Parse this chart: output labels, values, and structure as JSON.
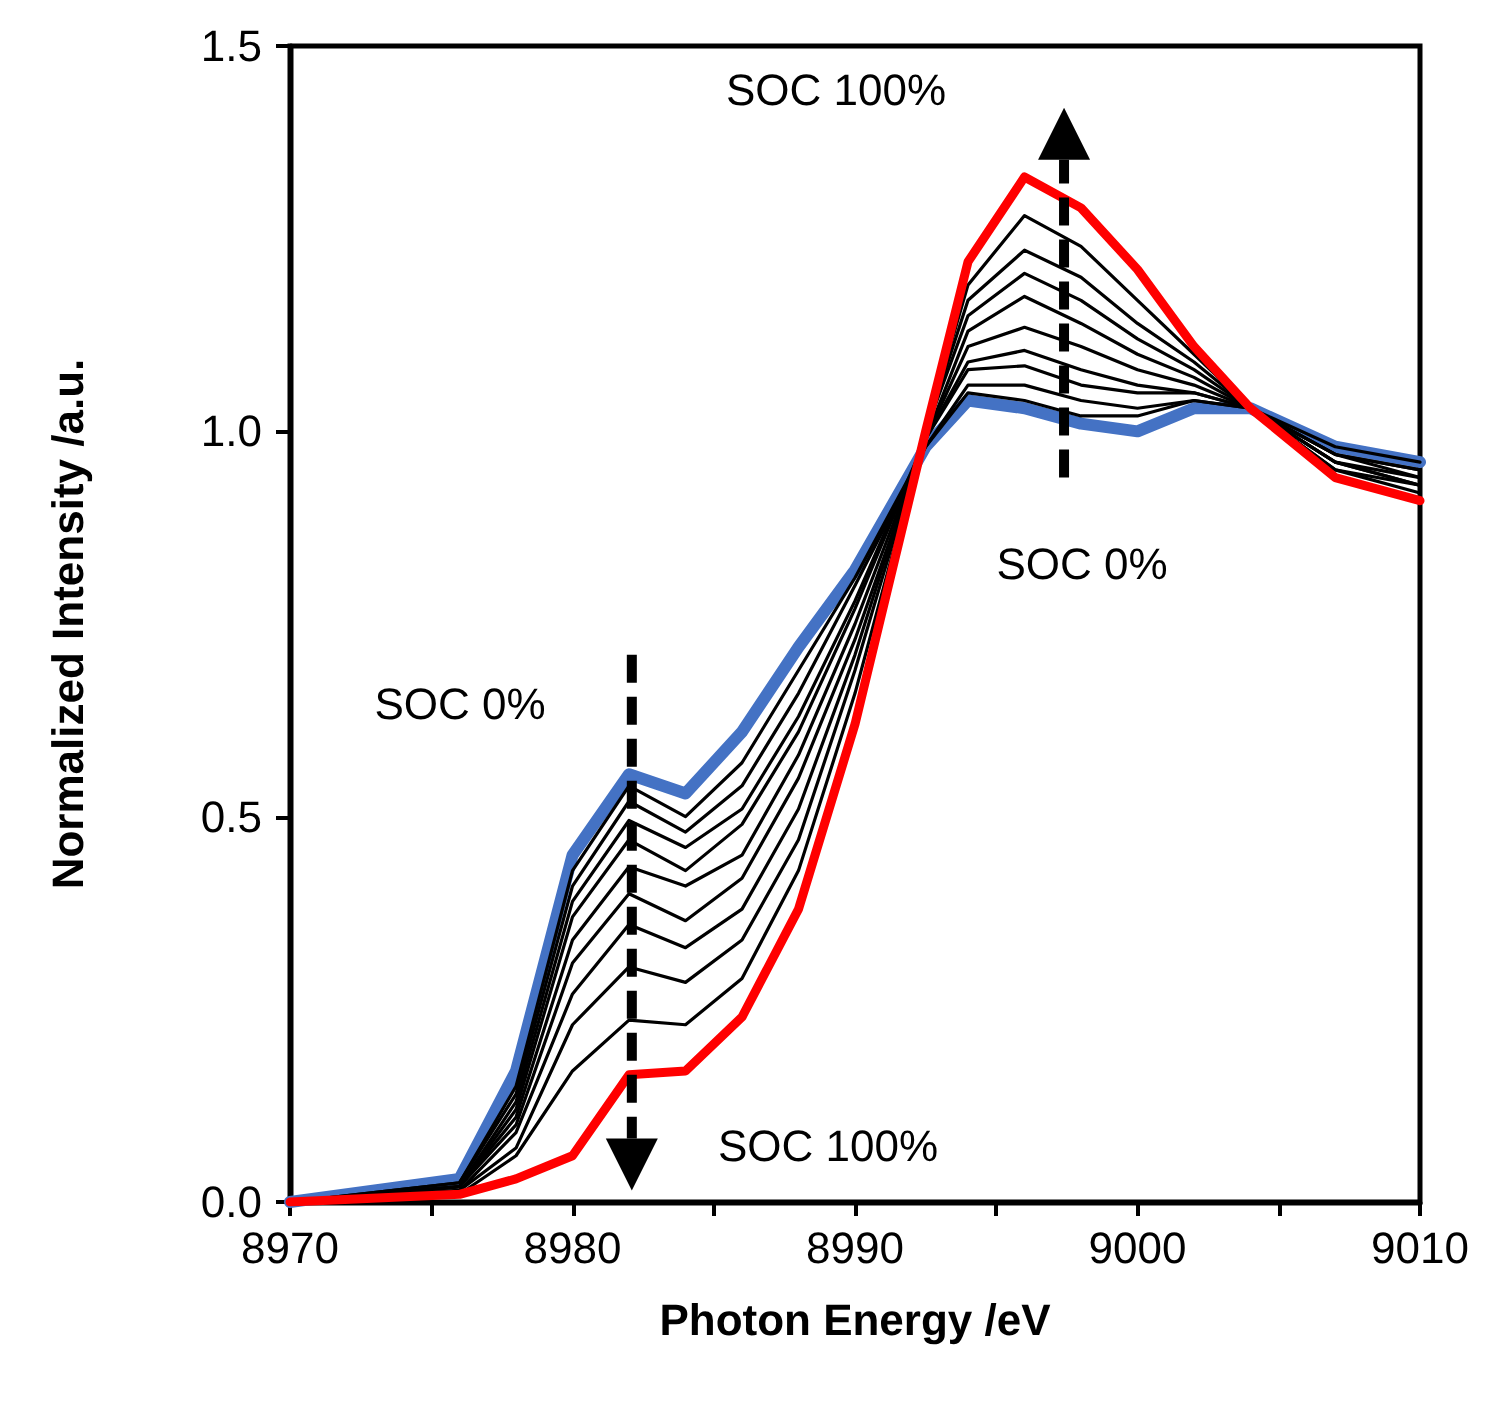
{
  "chart_data": {
    "type": "line",
    "xlabel": "Photon Energy /eV",
    "ylabel": "Normalized Intensity /a.u.",
    "x": [
      8970,
      8976,
      8978,
      8980,
      8982,
      8984,
      8986,
      8988,
      8990,
      8992.5,
      8994,
      8996,
      8998,
      9000,
      9002,
      9004,
      9007,
      9010
    ],
    "series": [
      {
        "color": "#4472c4",
        "values": [
          0,
          0.03,
          0.17,
          0.45,
          0.555,
          0.53,
          0.61,
          0.72,
          0.82,
          0.98,
          1.04,
          1.03,
          1.01,
          1.0,
          1.03,
          1.03,
          0.98,
          0.96
        ]
      },
      {
        "color": "#000000",
        "values": [
          0,
          0.025,
          0.15,
          0.43,
          0.54,
          0.5,
          0.57,
          0.69,
          0.81,
          0.98,
          1.05,
          1.04,
          1.02,
          1.02,
          1.04,
          1.03,
          0.98,
          0.96
        ]
      },
      {
        "color": "#000000",
        "values": [
          0,
          0.025,
          0.14,
          0.41,
          0.52,
          0.48,
          0.54,
          0.66,
          0.8,
          0.98,
          1.06,
          1.06,
          1.04,
          1.03,
          1.04,
          1.03,
          0.97,
          0.95
        ]
      },
      {
        "color": "#000000",
        "values": [
          0,
          0.02,
          0.13,
          0.39,
          0.495,
          0.46,
          0.51,
          0.63,
          0.78,
          0.99,
          1.08,
          1.085,
          1.06,
          1.05,
          1.05,
          1.03,
          0.97,
          0.95
        ]
      },
      {
        "color": "#000000",
        "values": [
          0,
          0.02,
          0.12,
          0.37,
          0.47,
          0.43,
          0.49,
          0.61,
          0.77,
          0.99,
          1.09,
          1.105,
          1.08,
          1.06,
          1.05,
          1.03,
          0.97,
          0.94
        ]
      },
      {
        "color": "#000000",
        "values": [
          0,
          0.02,
          0.11,
          0.34,
          0.435,
          0.41,
          0.45,
          0.58,
          0.75,
          0.99,
          1.11,
          1.135,
          1.11,
          1.08,
          1.06,
          1.03,
          0.96,
          0.94
        ]
      },
      {
        "color": "#000000",
        "values": [
          0,
          0.02,
          0.1,
          0.31,
          0.4,
          0.365,
          0.42,
          0.55,
          0.73,
          0.99,
          1.13,
          1.175,
          1.14,
          1.1,
          1.07,
          1.03,
          0.96,
          0.93
        ]
      },
      {
        "color": "#000000",
        "values": [
          0,
          0.015,
          0.09,
          0.27,
          0.36,
          0.33,
          0.38,
          0.51,
          0.71,
          1.0,
          1.15,
          1.205,
          1.17,
          1.12,
          1.08,
          1.03,
          0.96,
          0.93
        ]
      },
      {
        "color": "#000000",
        "values": [
          0,
          0.015,
          0.07,
          0.23,
          0.305,
          0.285,
          0.34,
          0.47,
          0.69,
          1.0,
          1.17,
          1.235,
          1.2,
          1.14,
          1.09,
          1.03,
          0.95,
          0.93
        ]
      },
      {
        "color": "#000000",
        "values": [
          0,
          0.01,
          0.06,
          0.17,
          0.236,
          0.23,
          0.29,
          0.43,
          0.66,
          1.0,
          1.19,
          1.28,
          1.24,
          1.17,
          1.1,
          1.03,
          0.95,
          0.92
        ]
      },
      {
        "color": "#ff0000",
        "values": [
          0,
          0.01,
          0.03,
          0.06,
          0.165,
          0.17,
          0.24,
          0.38,
          0.62,
          1.0,
          1.22,
          1.33,
          1.29,
          1.21,
          1.11,
          1.03,
          0.94,
          0.91
        ]
      }
    ],
    "xlim": [
      8970,
      9010
    ],
    "xticks": [
      8970,
      {
        "value": 8975,
        "label": null
      },
      8980,
      {
        "value": 8985,
        "label": null
      },
      8990,
      {
        "value": 8995,
        "label": null
      },
      9000,
      {
        "value": 9005,
        "label": null
      },
      9010
    ],
    "ylim": [
      0,
      1.5
    ],
    "yticks": [
      {
        "value": 0,
        "label": "0.0"
      },
      {
        "value": 0.5,
        "label": "0.5"
      },
      {
        "value": 1,
        "label": "1.0"
      },
      {
        "value": 1.5,
        "label": "1.5"
      }
    ],
    "annotations": [
      "SOC 100%",
      "SOC 0%",
      "SOC 0%",
      "SOC 100%"
    ],
    "grid": false,
    "marker": "none",
    "line_style": "solid"
  }
}
